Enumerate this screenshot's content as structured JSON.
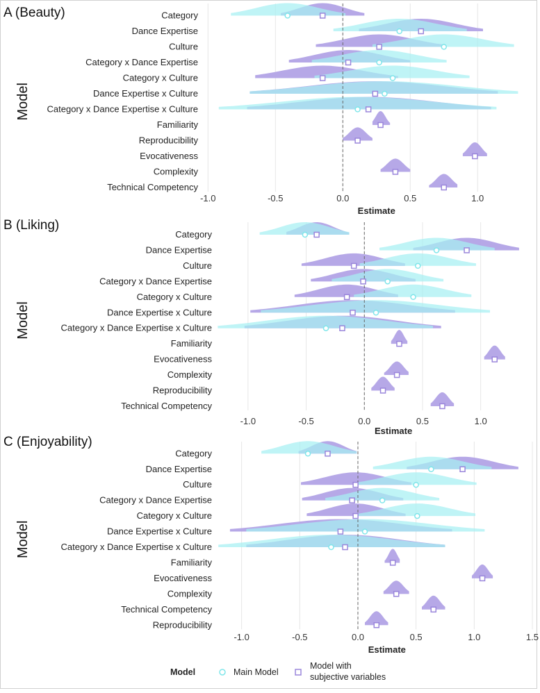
{
  "legend": {
    "title": "Model",
    "main_label": "Main Model",
    "subjective_label_line1": "Model with",
    "subjective_label_line2": "subjective variables"
  },
  "colors": {
    "main": "#a6f0f2",
    "subjective": "#b2a3e6",
    "point_main": "#7fe6ea",
    "point_subjective": "#9a86db",
    "zero_line": "#666666",
    "grid": "#e6e6e6"
  },
  "chart_data": [
    {
      "type": "density-interval",
      "title": "A (Beauty)",
      "xlabel": "Estimate",
      "ylabel": "Model",
      "xlim": [
        -1.048,
        1.437
      ],
      "xticks": [
        -1.0,
        -0.5,
        0.0,
        0.5,
        1.0
      ],
      "xtick_labels": [
        "-1.0",
        "-0.5",
        "0.0",
        "0.5",
        "1.0"
      ],
      "rows": [
        {
          "label": "Category",
          "main": {
            "est": -0.41,
            "lo": -0.83,
            "hi": 0.02
          },
          "subjective": {
            "est": -0.15,
            "lo": -0.46,
            "hi": 0.16
          }
        },
        {
          "label": "Dance Expertise",
          "main": {
            "est": 0.42,
            "lo": -0.07,
            "hi": 0.92
          },
          "subjective": {
            "est": 0.58,
            "lo": 0.12,
            "hi": 1.04
          }
        },
        {
          "label": "Culture",
          "main": {
            "est": 0.75,
            "lo": 0.22,
            "hi": 1.27
          },
          "subjective": {
            "est": 0.27,
            "lo": -0.2,
            "hi": 0.74
          }
        },
        {
          "label": "Category x Dance Expertise",
          "main": {
            "est": 0.27,
            "lo": -0.23,
            "hi": 0.77
          },
          "subjective": {
            "est": 0.04,
            "lo": -0.4,
            "hi": 0.5
          }
        },
        {
          "label": "Category x Culture",
          "main": {
            "est": 0.37,
            "lo": -0.21,
            "hi": 0.94
          },
          "subjective": {
            "est": -0.15,
            "lo": -0.65,
            "hi": 0.41
          }
        },
        {
          "label": "Dance Expertise x Culture",
          "main": {
            "est": 0.31,
            "lo": -0.69,
            "hi": 1.3
          },
          "subjective": {
            "est": 0.24,
            "lo": -0.69,
            "hi": 1.15
          }
        },
        {
          "label": "Category x Dance Expertise x Culture",
          "main": {
            "est": 0.11,
            "lo": -0.92,
            "hi": 1.14
          },
          "subjective": {
            "est": 0.19,
            "lo": -0.71,
            "hi": 1.1
          }
        },
        {
          "label": "Familiarity",
          "main": null,
          "subjective": {
            "est": 0.28,
            "lo": 0.22,
            "hi": 0.35
          }
        },
        {
          "label": "Reproducibility",
          "main": null,
          "subjective": {
            "est": 0.11,
            "lo": 0.0,
            "hi": 0.22
          }
        },
        {
          "label": "Evocativeness",
          "main": null,
          "subjective": {
            "est": 0.98,
            "lo": 0.89,
            "hi": 1.07
          }
        },
        {
          "label": "Complexity",
          "main": null,
          "subjective": {
            "est": 0.39,
            "lo": 0.28,
            "hi": 0.5
          }
        },
        {
          "label": "Technical Competency",
          "main": null,
          "subjective": {
            "est": 0.75,
            "lo": 0.64,
            "hi": 0.85
          }
        }
      ]
    },
    {
      "type": "density-interval",
      "title": "B (Liking)",
      "xlabel": "Estimate",
      "ylabel": "Model",
      "xlim": [
        -1.28,
        1.48
      ],
      "xticks": [
        -1.0,
        -0.5,
        0.0,
        0.5,
        1.0
      ],
      "xtick_labels": [
        "-1.0",
        "-0.5",
        "0.0",
        "0.5",
        "1.0"
      ],
      "rows": [
        {
          "label": "Category",
          "main": {
            "est": -0.51,
            "lo": -0.9,
            "hi": -0.13
          },
          "subjective": {
            "est": -0.41,
            "lo": -0.67,
            "hi": -0.13
          }
        },
        {
          "label": "Dance Expertise",
          "main": {
            "est": 0.62,
            "lo": 0.13,
            "hi": 1.12
          },
          "subjective": {
            "est": 0.88,
            "lo": 0.42,
            "hi": 1.33
          }
        },
        {
          "label": "Culture",
          "main": {
            "est": 0.46,
            "lo": -0.04,
            "hi": 0.96
          },
          "subjective": {
            "est": -0.09,
            "lo": -0.54,
            "hi": 0.35
          }
        },
        {
          "label": "Category x Dance Expertise",
          "main": {
            "est": 0.2,
            "lo": -0.28,
            "hi": 0.68
          },
          "subjective": {
            "est": -0.01,
            "lo": -0.46,
            "hi": 0.44
          }
        },
        {
          "label": "Category x Culture",
          "main": {
            "est": 0.42,
            "lo": -0.09,
            "hi": 0.92
          },
          "subjective": {
            "est": -0.15,
            "lo": -0.6,
            "hi": 0.29
          }
        },
        {
          "label": "Dance Expertise x Culture",
          "main": {
            "est": 0.1,
            "lo": -0.89,
            "hi": 1.08
          },
          "subjective": {
            "est": -0.1,
            "lo": -0.98,
            "hi": 0.78
          }
        },
        {
          "label": "Category x Dance Expertise x Culture",
          "main": {
            "est": -0.33,
            "lo": -1.26,
            "hi": 0.59
          },
          "subjective": {
            "est": -0.19,
            "lo": -1.03,
            "hi": 0.66
          }
        },
        {
          "label": "Familiarity",
          "main": null,
          "subjective": {
            "est": 0.3,
            "lo": 0.23,
            "hi": 0.37
          }
        },
        {
          "label": "Evocativeness",
          "main": null,
          "subjective": {
            "est": 1.12,
            "lo": 1.03,
            "hi": 1.21
          }
        },
        {
          "label": "Complexity",
          "main": null,
          "subjective": {
            "est": 0.28,
            "lo": 0.17,
            "hi": 0.38
          }
        },
        {
          "label": "Reproducibility",
          "main": null,
          "subjective": {
            "est": 0.16,
            "lo": 0.06,
            "hi": 0.26
          }
        },
        {
          "label": "Technical Competency",
          "main": null,
          "subjective": {
            "est": 0.67,
            "lo": 0.57,
            "hi": 0.77
          }
        }
      ]
    },
    {
      "type": "density-interval",
      "title": "C (Enjoyability)",
      "xlabel": "Estimate",
      "ylabel": "Model",
      "xlim": [
        -1.225,
        1.536
      ],
      "xticks": [
        -1.0,
        -0.5,
        0.0,
        0.5,
        1.0,
        1.5
      ],
      "xtick_labels": [
        "-1.0",
        "-0.5",
        "0.0",
        "0.5",
        "1.0",
        "1.5"
      ],
      "rows": [
        {
          "label": "Category",
          "main": {
            "est": -0.43,
            "lo": -0.83,
            "hi": -0.01
          },
          "subjective": {
            "est": -0.26,
            "lo": -0.51,
            "hi": -0.01
          }
        },
        {
          "label": "Dance Expertise",
          "main": {
            "est": 0.63,
            "lo": 0.13,
            "hi": 1.15
          },
          "subjective": {
            "est": 0.9,
            "lo": 0.42,
            "hi": 1.38
          }
        },
        {
          "label": "Culture",
          "main": {
            "est": 0.5,
            "lo": 0.0,
            "hi": 1.02
          },
          "subjective": {
            "est": -0.02,
            "lo": -0.49,
            "hi": 0.46
          }
        },
        {
          "label": "Category x Dance Expertise",
          "main": {
            "est": 0.21,
            "lo": -0.28,
            "hi": 0.7
          },
          "subjective": {
            "est": -0.05,
            "lo": -0.48,
            "hi": 0.39
          }
        },
        {
          "label": "Category x Culture",
          "main": {
            "est": 0.51,
            "lo": 0.0,
            "hi": 1.01
          },
          "subjective": {
            "est": -0.02,
            "lo": -0.44,
            "hi": 0.41
          }
        },
        {
          "label": "Dance Expertise x Culture",
          "main": {
            "est": 0.06,
            "lo": -0.96,
            "hi": 1.09
          },
          "subjective": {
            "est": -0.15,
            "lo": -1.1,
            "hi": 0.81
          }
        },
        {
          "label": "Category x Dance Expertise x Culture",
          "main": {
            "est": -0.23,
            "lo": -1.2,
            "hi": 0.75
          },
          "subjective": {
            "est": -0.11,
            "lo": -0.96,
            "hi": 0.75
          }
        },
        {
          "label": "Familiarity",
          "main": null,
          "subjective": {
            "est": 0.3,
            "lo": 0.23,
            "hi": 0.36
          }
        },
        {
          "label": "Evocativeness",
          "main": null,
          "subjective": {
            "est": 1.07,
            "lo": 0.98,
            "hi": 1.16
          }
        },
        {
          "label": "Complexity",
          "main": null,
          "subjective": {
            "est": 0.33,
            "lo": 0.22,
            "hi": 0.44
          }
        },
        {
          "label": "Technical Competency",
          "main": null,
          "subjective": {
            "est": 0.65,
            "lo": 0.55,
            "hi": 0.75
          }
        },
        {
          "label": "Reproducibility",
          "main": null,
          "subjective": {
            "est": 0.16,
            "lo": 0.06,
            "hi": 0.26
          }
        }
      ]
    }
  ]
}
